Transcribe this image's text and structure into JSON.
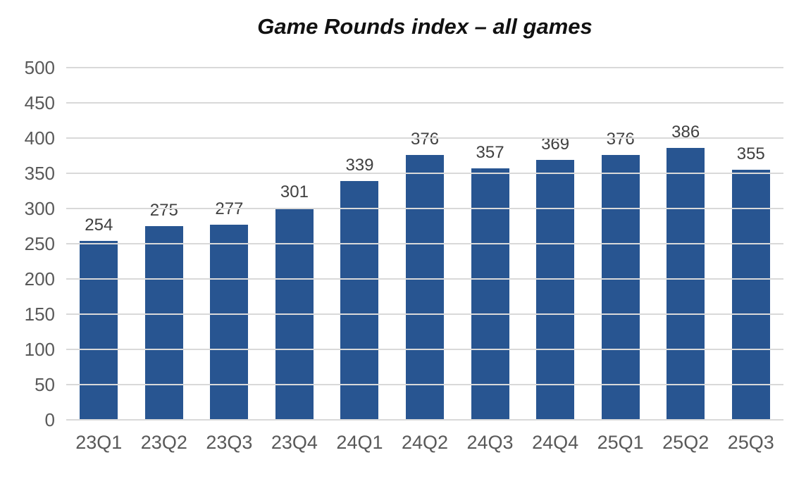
{
  "chart_data": {
    "type": "bar",
    "title": "Game Rounds index – all games",
    "categories": [
      "23Q1",
      "23Q2",
      "23Q3",
      "23Q4",
      "24Q1",
      "24Q2",
      "24Q3",
      "24Q4",
      "25Q1",
      "25Q2",
      "25Q3"
    ],
    "values": [
      254,
      275,
      277,
      301,
      339,
      376,
      357,
      369,
      376,
      386,
      355
    ],
    "xlabel": "",
    "ylabel": "",
    "ylim": [
      0,
      500
    ],
    "ytick_step": 50,
    "grid": true,
    "legend": "none",
    "data_labels": "above-bars",
    "colors": {
      "bar": "#285591",
      "gridline": "#D9D9D9",
      "axis_tick_label": "#595959",
      "data_label": "#404040",
      "title": "#111111",
      "background": "#FFFFFF"
    }
  }
}
